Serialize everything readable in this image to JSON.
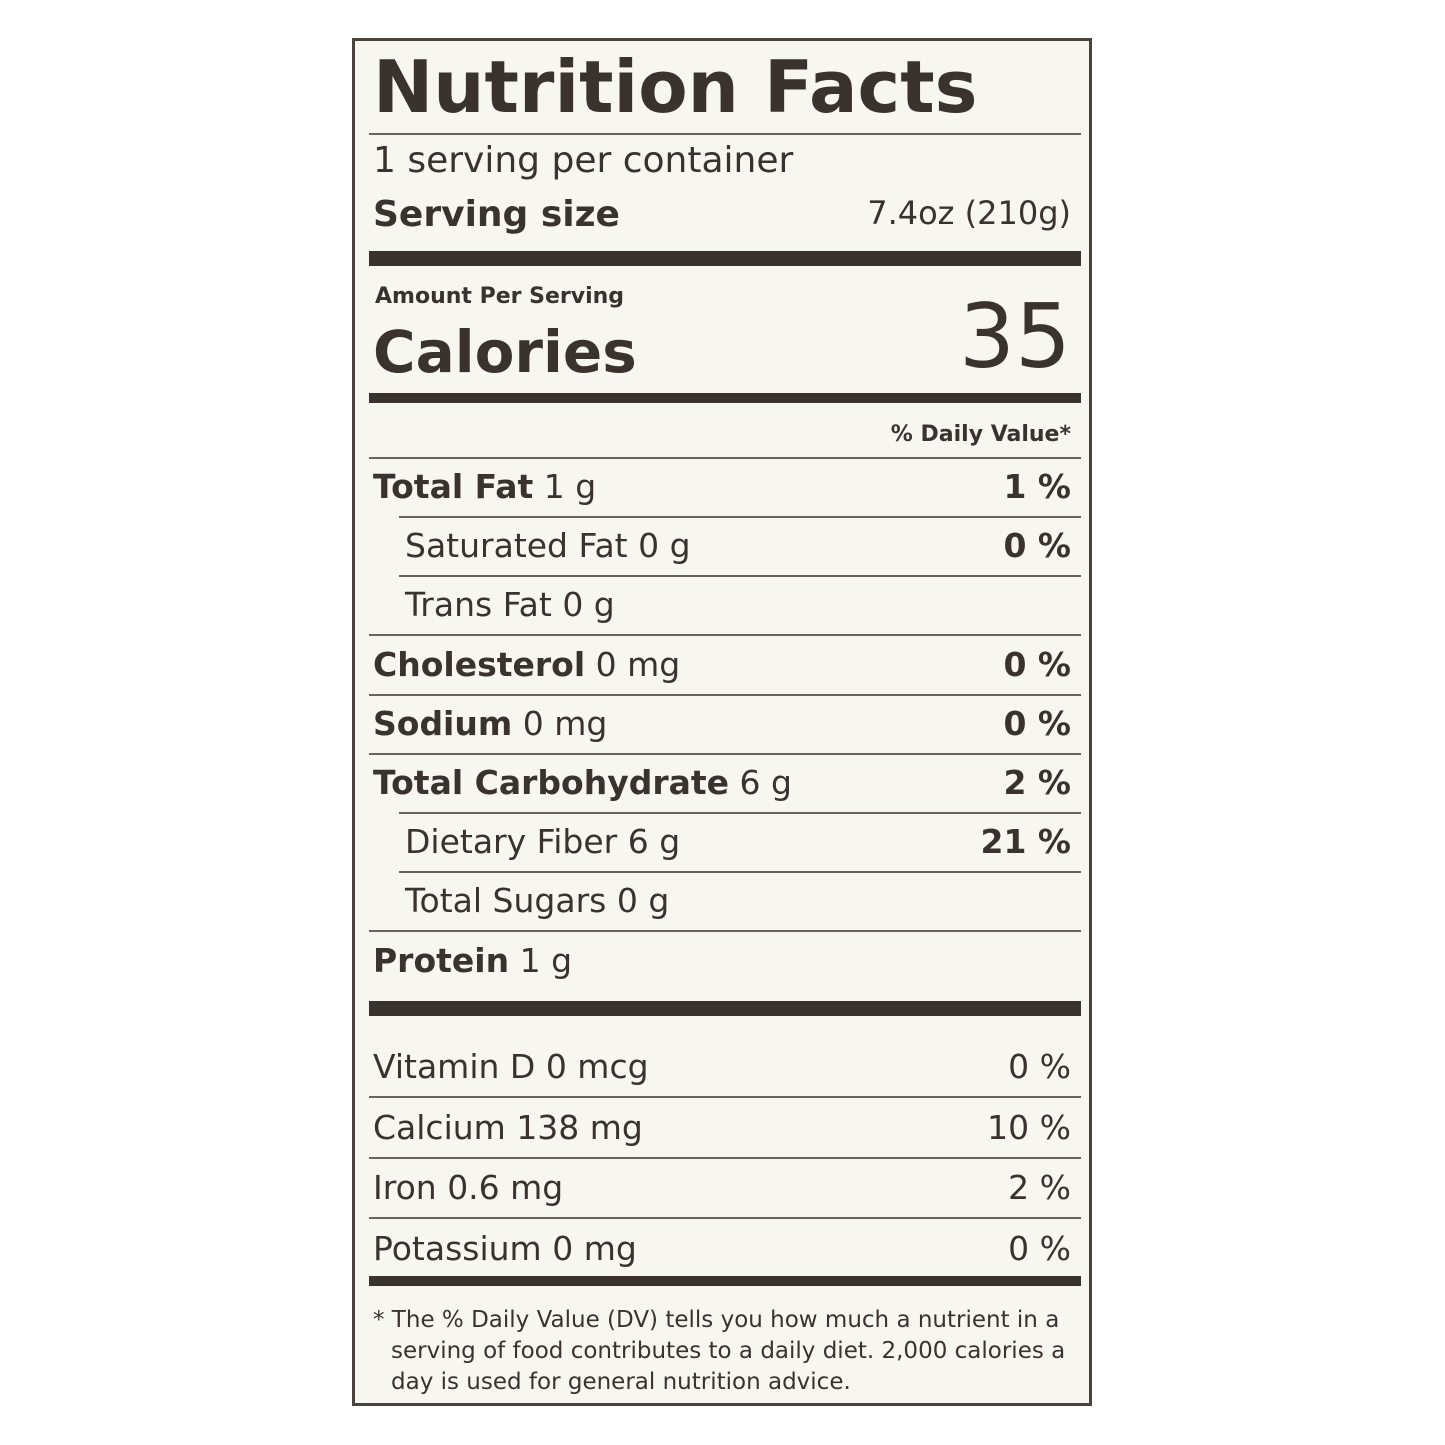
{
  "label": {
    "title": "Nutrition Facts",
    "servings": "1 serving per container",
    "serving_size_label": "Serving size",
    "serving_size_value": "7.4oz (210g)",
    "amount_per_serving": "Amount Per Serving",
    "calories_label": "Calories",
    "calories_value": "35",
    "daily_value_header": "% Daily Value*",
    "nutrients": [
      {
        "name": "Total Fat",
        "amount": "1 g",
        "dv": "1 %",
        "bold": true
      },
      {
        "name": "Saturated Fat",
        "amount": "0 g",
        "dv": "0 %",
        "bold": false
      },
      {
        "name": "Trans Fat",
        "amount": "0 g",
        "bold": false
      },
      {
        "name": "Cholesterol",
        "amount": "0 mg",
        "dv": "0 %",
        "bold": true
      },
      {
        "name": "Sodium",
        "amount": "0 mg",
        "dv": "0 %",
        "bold": true
      },
      {
        "name": "Total Carbohydrate",
        "amount": "6 g",
        "dv": "2 %",
        "bold": true
      },
      {
        "name": "Dietary Fiber",
        "amount": "6 g",
        "dv": "21 %",
        "bold": false
      },
      {
        "name": "Total Sugars",
        "amount": "0 g",
        "bold": false
      },
      {
        "name": "Protein",
        "amount": "1 g",
        "bold": true
      }
    ],
    "vitamins": [
      {
        "name": "Vitamin D",
        "amount": "0 mcg",
        "dv": "0 %"
      },
      {
        "name": "Calcium",
        "amount": "138 mg",
        "dv": "10 %"
      },
      {
        "name": "Iron",
        "amount": "0.6 mg",
        "dv": "2 %"
      },
      {
        "name": "Potassium",
        "amount": "0 mg",
        "dv": "0 %"
      }
    ],
    "footnote": "* The % Daily Value (DV) tells you how much a nutrient in a serving of food contributes to a daily diet. 2,000 calories a day is used for general nutrition advice."
  }
}
